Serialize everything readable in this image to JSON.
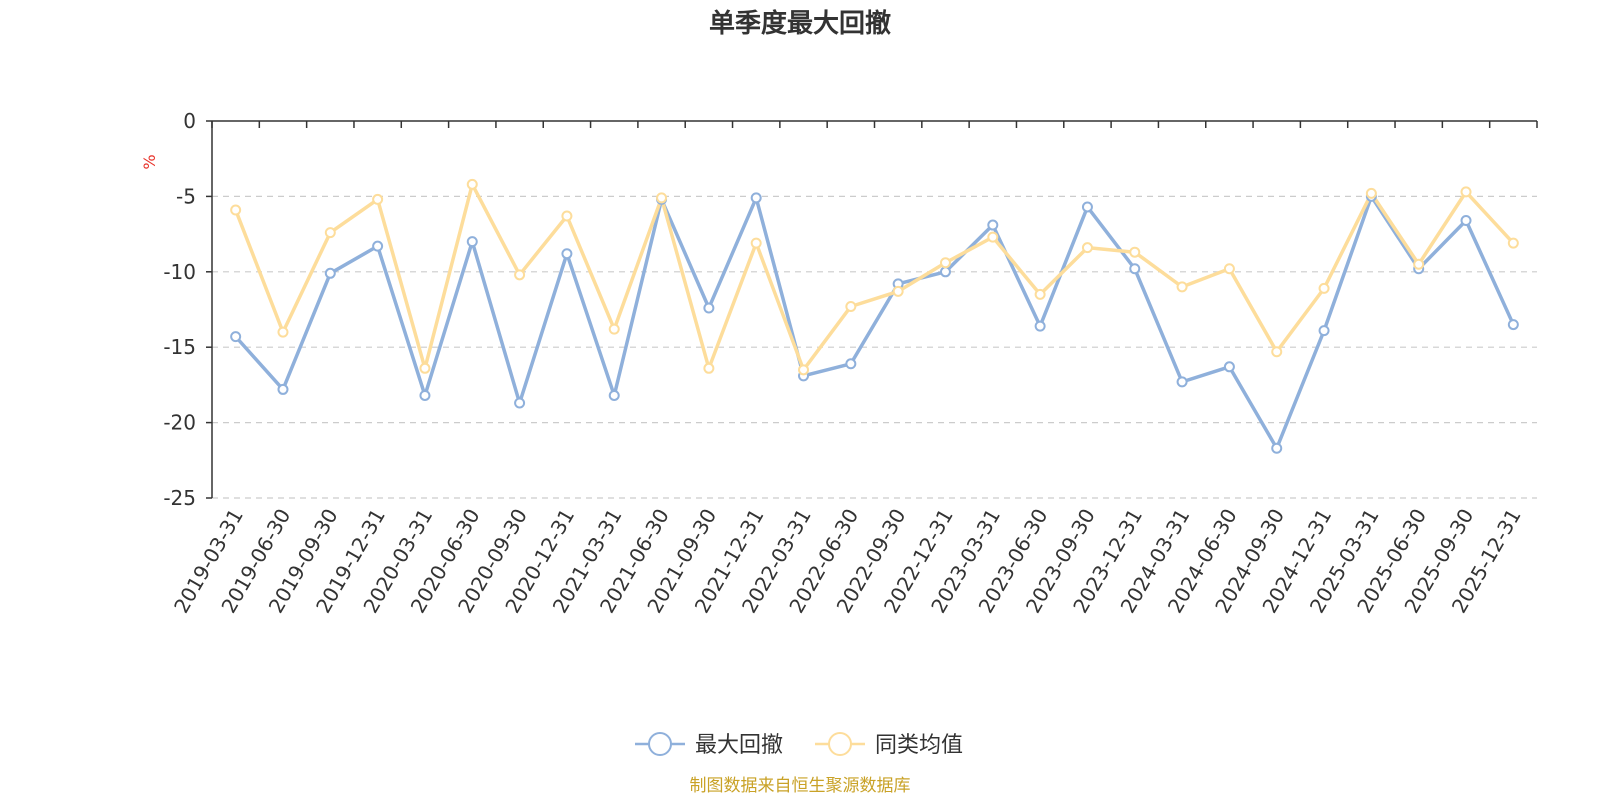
{
  "colors": {
    "series_max_drawdown": "#8fb0db",
    "series_peer_avg": "#fddd9b",
    "axis": "#333333",
    "grid": "#cccccc",
    "unit": "#e8322a",
    "source": "#c9a227"
  },
  "chart_data": {
    "type": "line",
    "title": "单季度最大回撤",
    "ylabel": "%",
    "ylim": [
      -25,
      0
    ],
    "yticks": [
      0,
      -5,
      -10,
      -15,
      -20,
      -25
    ],
    "grid": true,
    "legend_position": "bottom-center",
    "categories": [
      "2019-03-31",
      "2019-06-30",
      "2019-09-30",
      "2019-12-31",
      "2020-03-31",
      "2020-06-30",
      "2020-09-30",
      "2020-12-31",
      "2021-03-31",
      "2021-06-30",
      "2021-09-30",
      "2021-12-31",
      "2022-03-31",
      "2022-06-30",
      "2022-09-30",
      "2022-12-31",
      "2023-03-31",
      "2023-06-30",
      "2023-09-30",
      "2023-12-31",
      "2024-03-31",
      "2024-06-30",
      "2024-09-30",
      "2024-12-31",
      "2025-03-31",
      "2025-06-30",
      "2025-09-30",
      "2025-12-31"
    ],
    "series": [
      {
        "name": "最大回撤",
        "values": [
          -14.3,
          -17.8,
          -10.1,
          -8.3,
          -18.2,
          -8.0,
          -18.7,
          -8.8,
          -18.2,
          -5.2,
          -12.4,
          -5.1,
          -16.9,
          -16.1,
          -10.8,
          -10.0,
          -6.9,
          -13.6,
          -5.7,
          -9.8,
          -17.3,
          -16.3,
          -21.7,
          -13.9,
          -5.0,
          -9.8,
          -6.6,
          -13.5
        ]
      },
      {
        "name": "同类均值",
        "values": [
          -5.9,
          -14.0,
          -7.4,
          -5.2,
          -16.4,
          -4.2,
          -10.2,
          -6.3,
          -13.8,
          -5.1,
          -16.4,
          -8.1,
          -16.5,
          -12.3,
          -11.3,
          -9.4,
          -7.7,
          -11.5,
          -8.4,
          -8.7,
          -11.0,
          -9.8,
          -15.3,
          -11.1,
          -4.8,
          -9.5,
          -4.7,
          -8.1
        ]
      }
    ]
  },
  "source": "制图数据来自恒生聚源数据库"
}
